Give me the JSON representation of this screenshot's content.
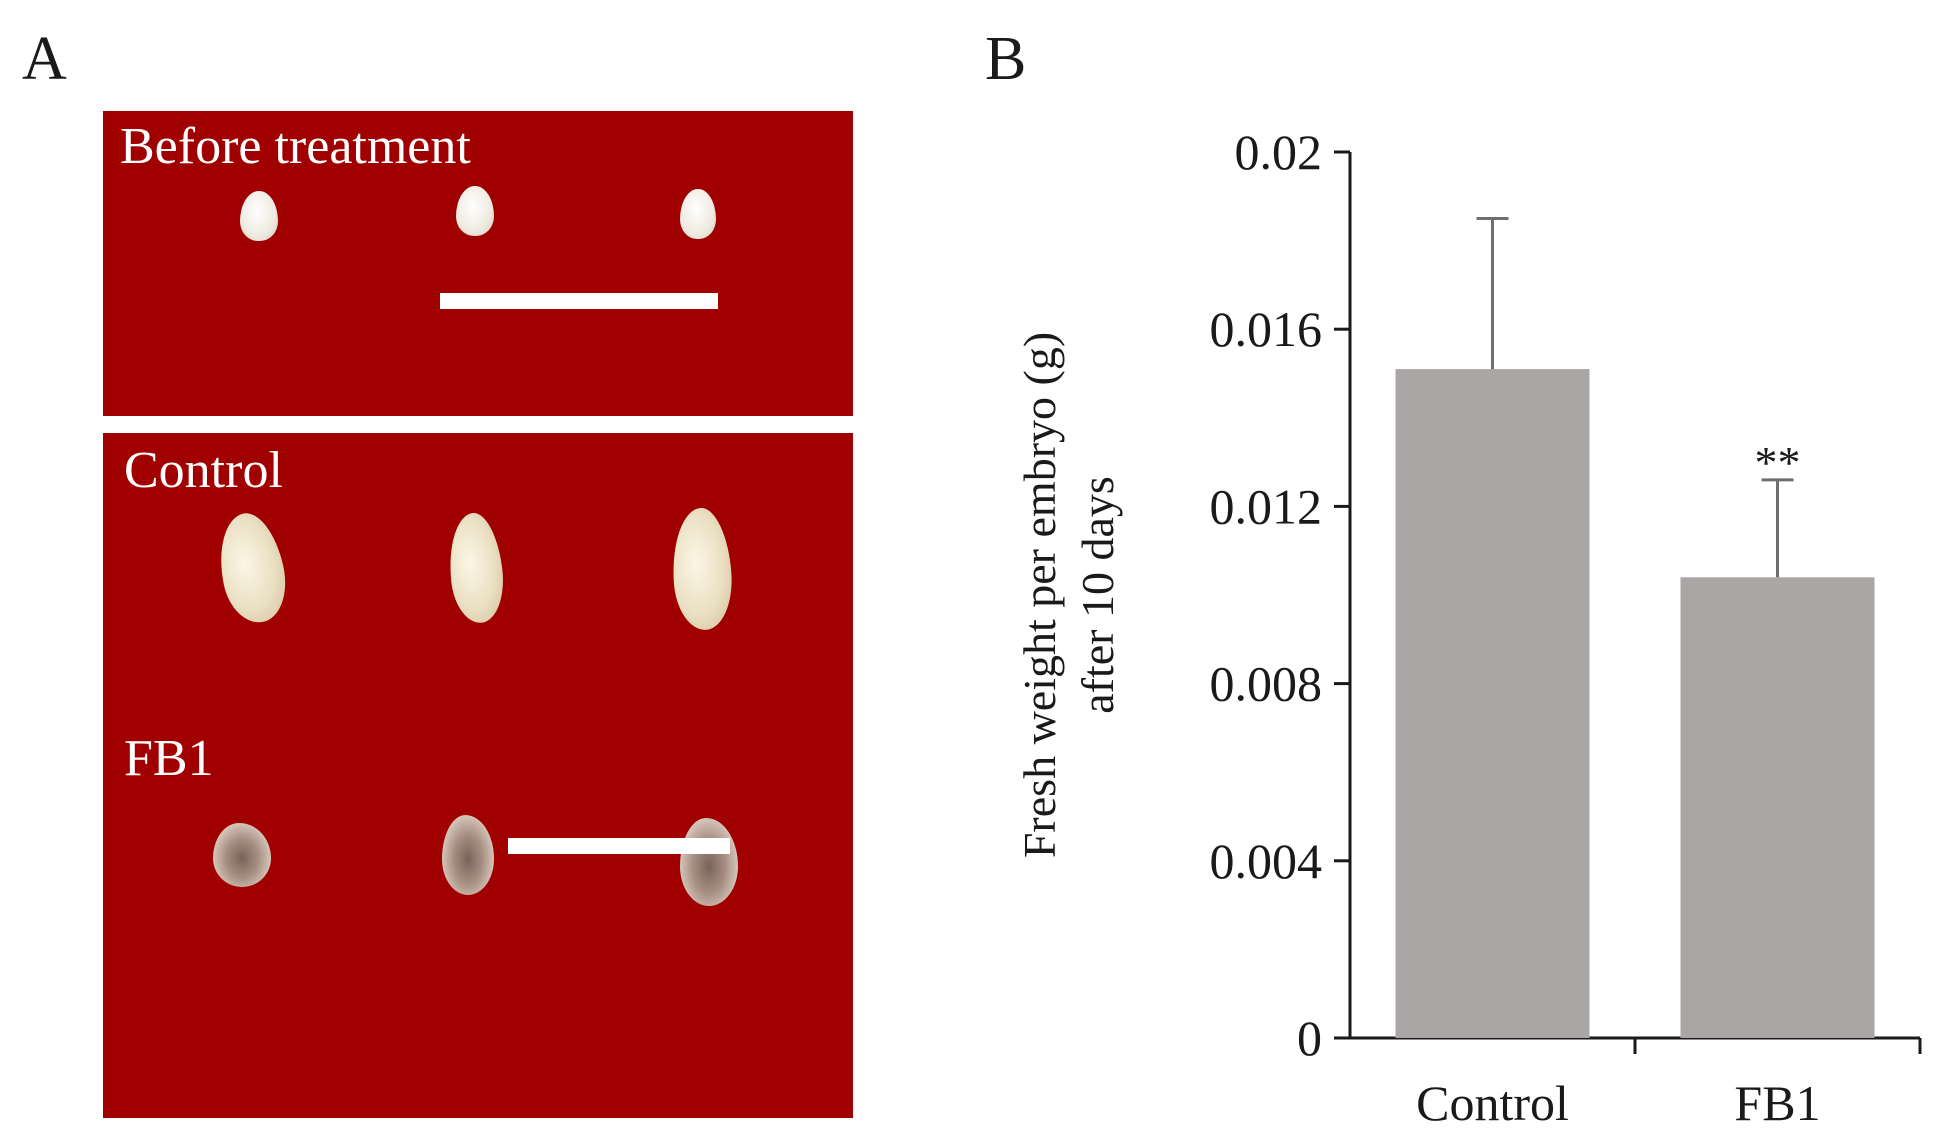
{
  "panels": {
    "a_letter": "A",
    "b_letter": "B"
  },
  "photos": {
    "top_label": "Before treatment",
    "control_label": "Control",
    "fb1_label": "FB1",
    "background_color": "#a00000"
  },
  "chart_data": {
    "type": "bar",
    "categories": [
      "Control",
      "FB1"
    ],
    "values": [
      0.0151,
      0.0104
    ],
    "errors": [
      0.0034,
      0.0022
    ],
    "annotations": [
      "",
      "**"
    ],
    "title": "",
    "xlabel": "",
    "ylabel": [
      "Fresh weight per embryo (g)",
      "after 10 days"
    ],
    "ylim": [
      0,
      0.02
    ],
    "yticks": [
      0,
      0.004,
      0.008,
      0.012,
      0.016,
      0.02
    ],
    "ytick_labels": [
      "0",
      "0.004",
      "0.008",
      "0.012",
      "0.016",
      "0.02"
    ],
    "bar_color": "#aba6a6",
    "grid": false,
    "legend": "none"
  }
}
